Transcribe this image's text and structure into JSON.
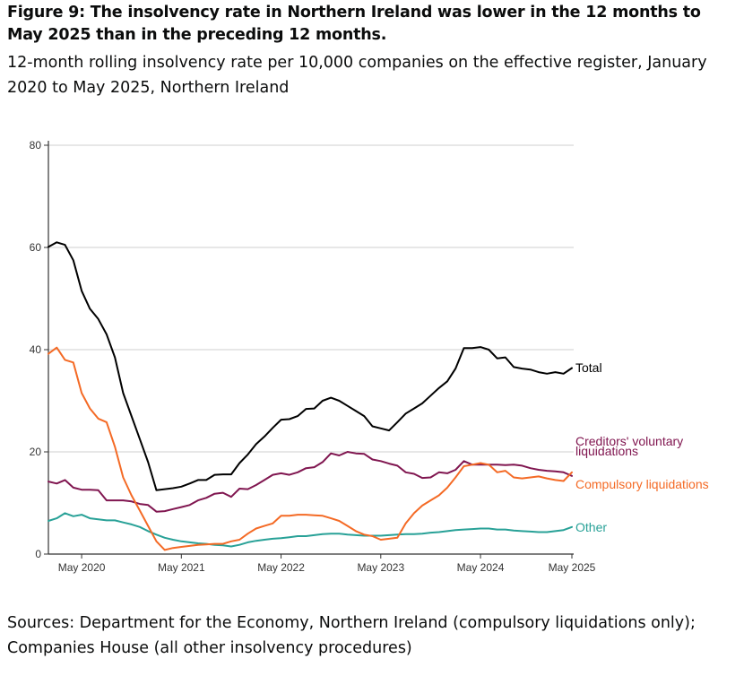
{
  "title": "Figure 9: The insolvency rate in Northern Ireland was lower in the 12 months to May 2025 than in the preceding 12 months.",
  "subtitle": "12-month rolling insolvency rate per 10,000 companies on the effective register, January 2020 to May 2025, Northern Ireland",
  "source": "Sources: Department for the Economy, Northern Ireland (compulsory liquidations only); Companies House (all other insolvency procedures)",
  "chart_data": {
    "type": "line",
    "x_start": "2020-01",
    "x_end": "2025-05",
    "x_tick_labels": [
      "May 2020",
      "May 2021",
      "May 2022",
      "May 2023",
      "May 2024",
      "May 2025"
    ],
    "ylim": [
      0,
      80
    ],
    "y_ticks": [
      0,
      20,
      40,
      60,
      80
    ],
    "grid": "horizontal",
    "series": [
      {
        "name": "Total",
        "color": "#000000",
        "values": [
          60.1,
          61.0,
          60.5,
          57.5,
          51.5,
          48.0,
          46.0,
          43.0,
          38.5,
          31.5,
          27.0,
          22.5,
          18.0,
          12.5,
          12.7,
          12.9,
          13.2,
          13.8,
          14.5,
          14.5,
          15.5,
          15.6,
          15.6,
          17.8,
          19.5,
          21.5,
          23.0,
          24.7,
          26.3,
          26.4,
          27.0,
          28.4,
          28.5,
          30.0,
          30.6,
          30.0,
          29.0,
          28.0,
          27.0,
          25.0,
          24.6,
          24.2,
          25.8,
          27.5,
          28.5,
          29.5,
          31.0,
          32.5,
          33.8,
          36.3,
          40.3,
          40.3,
          40.5,
          40.0,
          38.3,
          38.5,
          36.6,
          36.3,
          36.1,
          35.6,
          35.3,
          35.6,
          35.3,
          36.4
        ]
      },
      {
        "name": "Creditors' voluntary liquidations",
        "color": "#801650",
        "values": [
          14.2,
          13.8,
          14.5,
          13.0,
          12.6,
          12.6,
          12.5,
          10.5,
          10.5,
          10.5,
          10.3,
          9.8,
          9.6,
          8.3,
          8.4,
          8.8,
          9.2,
          9.6,
          10.5,
          11.0,
          11.8,
          12.0,
          11.2,
          12.8,
          12.7,
          13.5,
          14.5,
          15.5,
          15.8,
          15.5,
          16.0,
          16.8,
          17.0,
          18.0,
          19.7,
          19.3,
          20.0,
          19.7,
          19.6,
          18.5,
          18.2,
          17.7,
          17.3,
          16.0,
          15.7,
          14.9,
          15.0,
          16.0,
          15.8,
          16.5,
          18.2,
          17.5,
          17.5,
          17.5,
          17.5,
          17.4,
          17.5,
          17.3,
          16.8,
          16.5,
          16.3,
          16.2,
          16.0,
          15.3
        ]
      },
      {
        "name": "Compulsory liquidations",
        "color": "#f46a25",
        "values": [
          39.2,
          40.4,
          38.0,
          37.5,
          31.5,
          28.5,
          26.5,
          25.8,
          21.0,
          15.0,
          11.5,
          8.5,
          5.5,
          2.5,
          0.8,
          1.2,
          1.4,
          1.6,
          1.8,
          1.9,
          2.0,
          2.0,
          2.5,
          2.8,
          4.0,
          5.0,
          5.5,
          6.0,
          7.5,
          7.5,
          7.7,
          7.7,
          7.6,
          7.5,
          7.0,
          6.5,
          5.5,
          4.5,
          3.8,
          3.5,
          2.8,
          3.0,
          3.2,
          6.0,
          8.0,
          9.5,
          10.5,
          11.5,
          13.0,
          15.0,
          17.2,
          17.5,
          17.8,
          17.5,
          16.0,
          16.3,
          15.0,
          14.8,
          15.0,
          15.2,
          14.8,
          14.5,
          14.3,
          16.0
        ]
      },
      {
        "name": "Other",
        "color": "#28a197",
        "values": [
          6.5,
          7.0,
          8.0,
          7.4,
          7.7,
          7.0,
          6.8,
          6.6,
          6.6,
          6.2,
          5.8,
          5.3,
          4.5,
          3.8,
          3.2,
          2.8,
          2.5,
          2.3,
          2.1,
          2.0,
          1.8,
          1.7,
          1.5,
          1.8,
          2.3,
          2.6,
          2.8,
          3.0,
          3.1,
          3.3,
          3.5,
          3.5,
          3.7,
          3.9,
          4.0,
          4.0,
          3.8,
          3.7,
          3.6,
          3.6,
          3.6,
          3.7,
          3.8,
          3.9,
          3.9,
          4.0,
          4.2,
          4.3,
          4.5,
          4.7,
          4.8,
          4.9,
          5.0,
          5.0,
          4.8,
          4.8,
          4.6,
          4.5,
          4.4,
          4.3,
          4.3,
          4.5,
          4.7,
          5.3
        ]
      }
    ]
  }
}
